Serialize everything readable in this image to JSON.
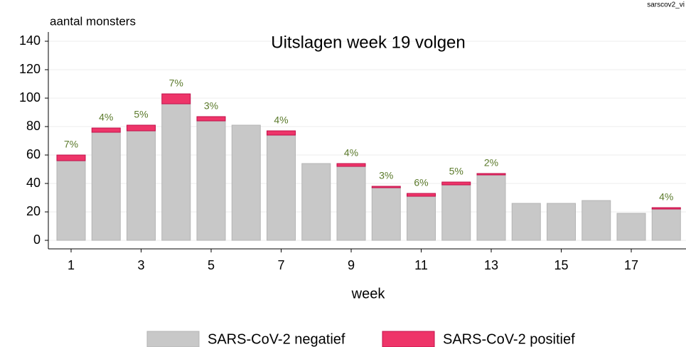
{
  "chart_data": {
    "type": "stacked_bar",
    "title": "Uitslagen week 19 volgen",
    "corner_label": "sarscov2_vi",
    "y_label": "aantal monsters",
    "x_label": "week",
    "categories": [
      "1",
      null,
      "3",
      null,
      "5",
      null,
      "7",
      null,
      "9",
      null,
      "11",
      null,
      "13",
      null,
      "15",
      null,
      "17",
      null
    ],
    "series": [
      {
        "name": "SARS-CoV-2 negatief",
        "color": "#c8c8c8",
        "values": [
          56,
          76,
          77,
          96,
          84,
          81,
          74,
          54,
          52,
          37,
          31,
          39,
          46,
          26,
          26,
          28,
          19,
          22
        ]
      },
      {
        "name": "SARS-CoV-2 positief",
        "color": "#ee3569",
        "values": [
          4,
          3,
          4,
          7,
          3,
          null,
          3,
          null,
          2,
          1,
          2,
          2,
          1,
          null,
          null,
          null,
          null,
          1
        ],
        "labels": [
          "7%",
          "4%",
          "5%",
          "7%",
          "3%",
          null,
          "4%",
          null,
          "4%",
          "3%",
          "6%",
          "5%",
          "2%",
          null,
          null,
          null,
          null,
          "4%"
        ]
      }
    ],
    "ylim": [
      0,
      140
    ],
    "yticks": [
      0,
      20,
      40,
      60,
      80,
      100,
      120,
      140
    ],
    "grid": true
  }
}
